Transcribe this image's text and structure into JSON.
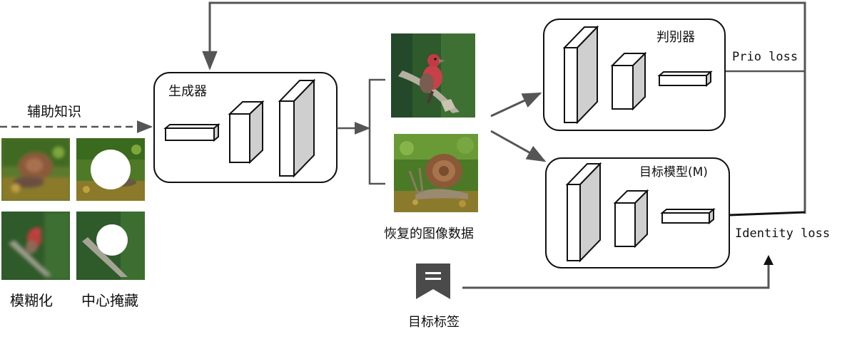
{
  "labels": {
    "aux_knowledge": "辅助知识",
    "blur": "模糊化",
    "center_mask": "中心掩藏",
    "generator": "生成器",
    "recovered_data": "恢复的图像数据",
    "discriminator": "判别器",
    "target_model": "目标模型(M)",
    "prio_loss": "Prio loss",
    "identity_loss": "Identity loss",
    "target_label": "目标标签"
  },
  "icons": {
    "target_label": "bookmark-icon"
  },
  "colors": {
    "arrow": "#555555",
    "box_stroke": "#111111",
    "prism_front": "#ffffff",
    "prism_side": "#cfcfcf",
    "prism_top": "#ffffff",
    "bookmark": "#4a4a4a"
  }
}
